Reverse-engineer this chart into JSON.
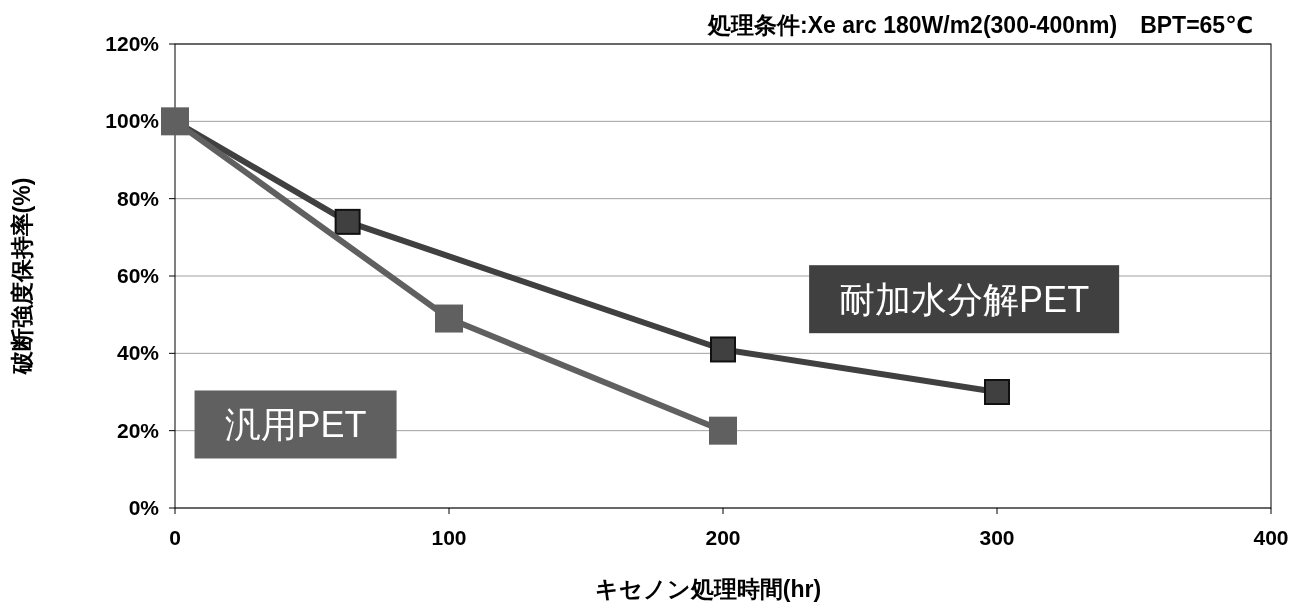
{
  "chart_data": {
    "type": "line",
    "title": "処理条件:Xe arc 180W/m2(300-400nm)　BPT=65℃",
    "xlabel": "キセノン処理時間(hr)",
    "ylabel": "破断強度保持率(%)",
    "xlim": [
      0,
      400
    ],
    "xticks": [
      0,
      100,
      200,
      300,
      400
    ],
    "ylim": [
      0,
      120
    ],
    "yticks": [
      {
        "value": 0,
        "label": "0%"
      },
      {
        "value": 20,
        "label": "20%"
      },
      {
        "value": 40,
        "label": "40%"
      },
      {
        "value": 60,
        "label": "60%"
      },
      {
        "value": 80,
        "label": "80%"
      },
      {
        "value": 100,
        "label": "100%"
      },
      {
        "value": 120,
        "label": "120%"
      }
    ],
    "grid": "y",
    "legend": false,
    "marker": "square",
    "line_style": "solid",
    "series": [
      {
        "name": "耐加水分解PET",
        "color": "#404040",
        "x": [
          0,
          63,
          200,
          300
        ],
        "values": [
          100,
          74,
          41,
          30
        ]
      },
      {
        "name": "汎用PET",
        "color": "#606060",
        "x": [
          0,
          100,
          200
        ],
        "values": [
          100,
          49,
          20
        ]
      }
    ]
  }
}
